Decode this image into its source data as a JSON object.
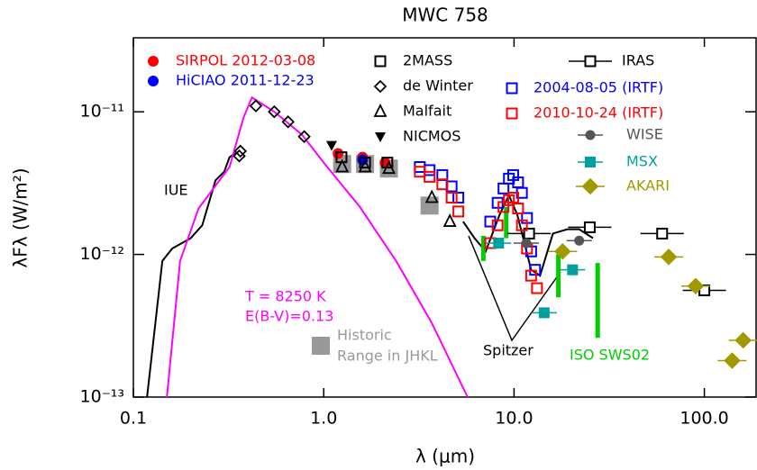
{
  "chart_data": {
    "type": "scatter",
    "title": "MWC 758",
    "xlabel": "λ (μm)",
    "ylabel": "λFλ (W/m²)",
    "xscale": "log",
    "yscale": "log",
    "xlim": [
      0.1,
      187
    ],
    "ylim": [
      1e-13,
      3.3e-11
    ],
    "xticks": [
      {
        "value": 0.1,
        "label": "0.1"
      },
      {
        "value": 1,
        "label": "1.0"
      },
      {
        "value": 10,
        "label": "10.0"
      },
      {
        "value": 100,
        "label": "100.0"
      }
    ],
    "yticks": [
      {
        "value": 1e-13,
        "label": "10⁻¹³"
      },
      {
        "value": 1e-12,
        "label": "10⁻¹²"
      },
      {
        "value": 1e-11,
        "label": "10⁻¹¹"
      }
    ],
    "series": [
      {
        "name": "SIRPOL 2012-03-08",
        "color": "#ff0000",
        "marker": "dot",
        "x": [
          1.19,
          1.6,
          2.1
        ],
        "values": [
          5.1e-12,
          4.8e-12,
          4.4e-12
        ]
      },
      {
        "name": "HiCIAO 2011-12-23",
        "color": "#0000ff",
        "marker": "dot",
        "x": [
          1.6
        ],
        "values": [
          4.6e-12
        ]
      },
      {
        "name": "2MASS",
        "color": "#000000",
        "marker": "square",
        "x": [
          1.24,
          1.65,
          2.16
        ],
        "values": [
          4.8e-12,
          4.4e-12,
          4.4e-12
        ]
      },
      {
        "name": "de Winter",
        "color": "#000000",
        "marker": "diamond",
        "x": [
          0.36,
          0.365,
          0.44,
          0.55,
          0.65,
          0.79
        ],
        "values": [
          4.9e-12,
          5.3e-12,
          1.1e-11,
          1e-11,
          8.5e-12,
          6.7e-12
        ]
      },
      {
        "name": "Malfait",
        "color": "#000000",
        "marker": "triangle",
        "x": [
          1.25,
          1.65,
          2.2,
          3.7,
          4.6
        ],
        "values": [
          4.1e-12,
          4.1e-12,
          4e-12,
          2.5e-12,
          1.7e-12
        ]
      },
      {
        "name": "NICMOS",
        "color": "#000000",
        "marker": "tri-down",
        "x": [
          1.1
        ],
        "values": [
          5.8e-12
        ]
      },
      {
        "name": "IRAS",
        "color": "#000000",
        "marker": "square-bar",
        "x": [
          12,
          25,
          60,
          100
        ],
        "values": [
          1.4e-12,
          1.55e-12,
          1.4e-12,
          5.6e-13
        ]
      },
      {
        "name": "2004-08-05 (IRTF)",
        "color": "#0000ff",
        "marker": "square",
        "x": [
          3.2,
          3.6,
          4.2,
          4.7,
          5.1,
          7.5,
          8.2,
          8.8,
          9.4,
          9.9,
          10.5,
          11,
          11.7,
          12.3,
          12.9
        ],
        "values": [
          4.1e-12,
          3.9e-12,
          3.6e-12,
          3e-12,
          2.5e-12,
          1.7e-12,
          2.3e-12,
          2.9e-12,
          3.4e-12,
          3.6e-12,
          3.2e-12,
          2.7e-12,
          1.8e-12,
          1.05e-12,
          7.8e-13
        ]
      },
      {
        "name": "2010-10-24 (IRTF)",
        "color": "#ff0000",
        "marker": "square",
        "x": [
          3.2,
          3.6,
          4.2,
          4.7,
          5.1,
          7.5,
          8.2,
          8.8,
          9.4,
          9.9,
          10.5,
          11,
          11.7,
          12.3,
          13.2
        ],
        "values": [
          3.8e-12,
          3.5e-12,
          3.1e-12,
          2.5e-12,
          2e-12,
          1.2e-12,
          1.6e-12,
          2.15e-12,
          2.4e-12,
          2.5e-12,
          2.1e-12,
          1.6e-12,
          1.1e-12,
          7.1e-13,
          5.8e-13
        ]
      },
      {
        "name": "WISE",
        "color": "#555555",
        "marker": "circle-bar",
        "x": [
          11.6,
          22
        ],
        "values": [
          1.2e-12,
          1.25e-12
        ]
      },
      {
        "name": "MSX",
        "color": "#00a0a0",
        "marker": "fsquare-bar",
        "x": [
          8.3,
          14.4,
          20.3
        ],
        "values": [
          1.2e-12,
          3.9e-13,
          7.8e-13
        ]
      },
      {
        "name": "AKARI",
        "color": "#a09a00",
        "marker": "fdiamond-bar",
        "x": [
          18,
          65,
          90,
          140,
          160
        ],
        "values": [
          1.05e-12,
          9.6e-13,
          6e-13,
          1.8e-13,
          2.5e-13
        ]
      }
    ],
    "lines": [
      {
        "color": "#000000",
        "x": [
          0.118,
          0.142,
          0.16,
          0.2,
          0.23,
          0.27,
          0.3,
          0.32,
          0.35
        ],
        "values": [
          1e-13,
          9e-13,
          1.1e-12,
          1.3e-12,
          1.6e-12,
          3.3e-12,
          3.8e-12,
          4.8e-12,
          5.2e-12
        ]
      },
      {
        "color": "#ff00ff",
        "x": [
          0.15,
          0.176,
          0.22,
          0.32,
          0.38,
          0.42,
          0.55,
          0.77,
          1.0,
          1.55,
          2.4,
          3.7,
          5.7
        ],
        "values": [
          1e-13,
          9e-13,
          2.1e-12,
          4.1e-12,
          9.2e-12,
          1.26e-11,
          1e-11,
          6.9e-12,
          4.4e-12,
          2.15e-12,
          9e-13,
          3.3e-13,
          1e-13
        ]
      },
      {
        "color": "#000000",
        "x": [
          5.4,
          6.2,
          7.1,
          8.4,
          9.4,
          10.4,
          12.3,
          13.7,
          16,
          19,
          22,
          26
        ],
        "values": [
          1.7e-12,
          1.3e-12,
          1.05e-12,
          1.9e-12,
          2.6e-12,
          1.9e-12,
          7.8e-13,
          7.1e-13,
          1.4e-12,
          1.5e-12,
          1.5e-12,
          1.3e-12
        ]
      }
    ],
    "ranges": {
      "color": "#00cc00",
      "x": [
        6.9,
        9.1,
        17.1,
        27.5
      ],
      "low": [
        9e-13,
        1.3e-12,
        5e-13,
        2.6e-13
      ],
      "high": [
        1.35e-12,
        2.15e-12,
        1e-12,
        8.7e-13
      ]
    },
    "historic_range": {
      "color": "#999999",
      "x": [
        1.25,
        1.65,
        2.2,
        3.6
      ],
      "values": [
        4.3e-12,
        4.3e-12,
        4e-12,
        2.2e-12
      ],
      "label": [
        "Historic",
        "Range in JHKL"
      ]
    },
    "annotations": [
      "IUE",
      "T = 8250 K",
      "E(B-V)=0.13",
      "Spitzer",
      "ISO SWS02"
    ]
  }
}
